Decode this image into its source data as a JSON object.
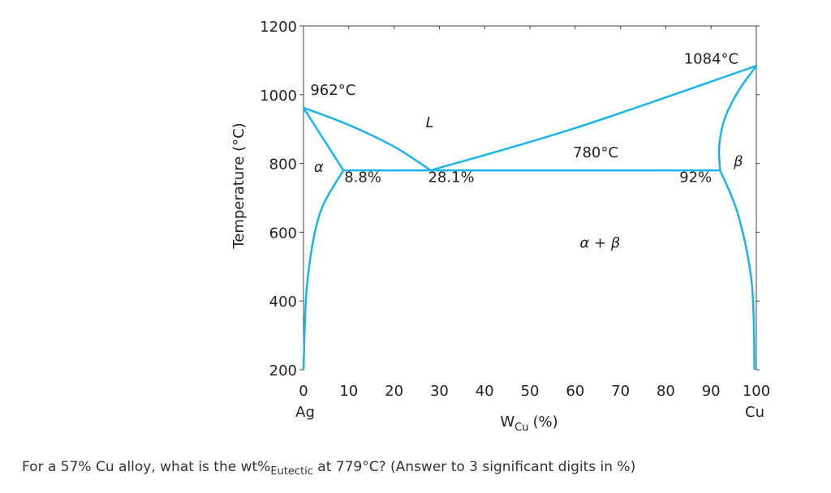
{
  "chart_data": {
    "type": "phase-diagram",
    "title": "",
    "xlabel_main": "W",
    "xlabel_sub": "Cu",
    "xlabel_unit": "(%)",
    "ylabel": "Temperature (°C)",
    "xlim": [
      0,
      100
    ],
    "ylim": [
      200,
      1200
    ],
    "x_ticks": [
      0,
      10,
      20,
      30,
      40,
      50,
      60,
      70,
      80,
      90,
      100
    ],
    "y_ticks": [
      200,
      400,
      600,
      800,
      1000,
      1200
    ],
    "x_end_labels": {
      "left": "Ag",
      "right": "Cu"
    },
    "boundaries": [
      {
        "name": "liquidus-left",
        "points": [
          [
            0,
            962
          ],
          [
            10,
            912
          ],
          [
            20,
            849
          ],
          [
            28.1,
            780
          ]
        ]
      },
      {
        "name": "liquidus-right",
        "points": [
          [
            28.1,
            780
          ],
          [
            60,
            903
          ],
          [
            100,
            1084
          ]
        ]
      },
      {
        "name": "solidus-left",
        "points": [
          [
            0,
            962
          ],
          [
            8.8,
            780
          ]
        ]
      },
      {
        "name": "solvus-left",
        "points": [
          [
            0,
            200
          ],
          [
            0.8,
            450
          ],
          [
            3.5,
            650
          ],
          [
            8.8,
            780
          ]
        ]
      },
      {
        "name": "eutectic-isotherm",
        "points": [
          [
            8.8,
            780
          ],
          [
            92,
            780
          ]
        ]
      },
      {
        "name": "solidus-right",
        "points": [
          [
            92,
            780
          ],
          [
            91.8,
            850
          ],
          [
            93,
            930
          ],
          [
            96,
            1010
          ],
          [
            100,
            1084
          ]
        ]
      },
      {
        "name": "solvus-right",
        "points": [
          [
            92,
            780
          ],
          [
            96,
            650
          ],
          [
            99,
            450
          ],
          [
            99.6,
            200
          ]
        ]
      }
    ],
    "annotations": [
      {
        "text": "962°C",
        "x": 1.5,
        "y": 1000,
        "italic": false
      },
      {
        "text": "1084°C",
        "x": 84,
        "y": 1090,
        "italic": false
      },
      {
        "text": "L",
        "x": 27,
        "y": 905,
        "italic": true
      },
      {
        "text": "780°C",
        "x": 59.5,
        "y": 818,
        "italic": false
      },
      {
        "text": "α",
        "x": 2.3,
        "y": 775,
        "italic": true
      },
      {
        "text": "β",
        "x": 95,
        "y": 792,
        "italic": true
      },
      {
        "text": "8.8%",
        "x": 9,
        "y": 746,
        "italic": false
      },
      {
        "text": "28.1%",
        "x": 27.5,
        "y": 746,
        "italic": false
      },
      {
        "text": "92%",
        "x": 83,
        "y": 746,
        "italic": false
      },
      {
        "text": "α + β",
        "x": 61,
        "y": 555,
        "italic": true
      }
    ]
  },
  "question": {
    "prefix": "For a 57% Cu alloy, what is the wt%",
    "subscript": "Eutectic",
    "suffix": " at 779°C?  (Answer to 3 significant digits in %)"
  }
}
